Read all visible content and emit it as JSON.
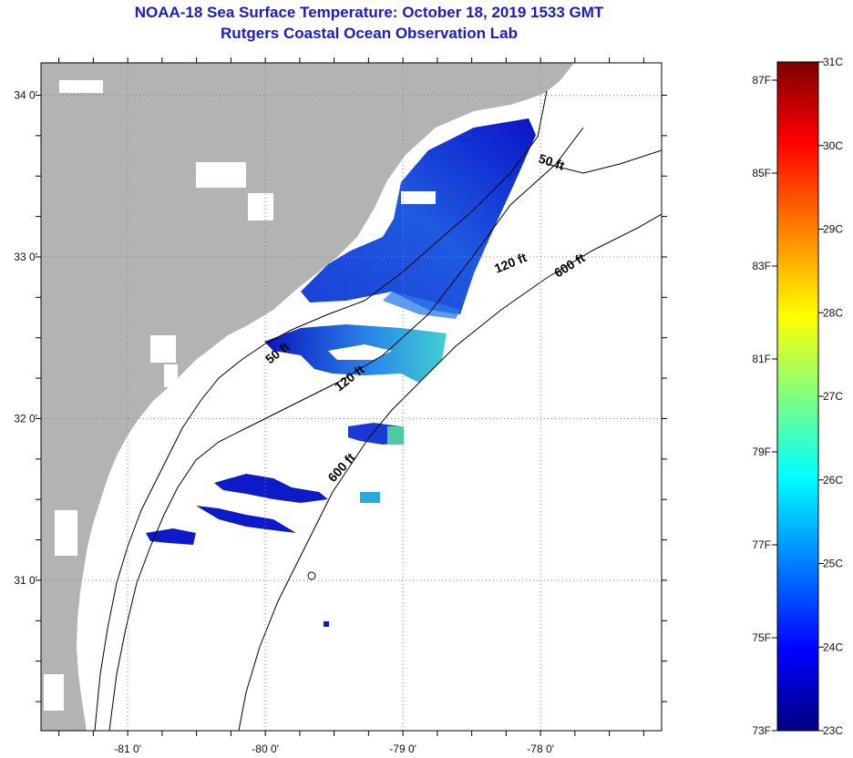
{
  "title": {
    "line1": "NOAA-18 Sea Surface Temperature:  October 18, 2019 1533 GMT",
    "line2": "Rutgers Coastal Ocean Observation Lab"
  },
  "map": {
    "latitude_ticks": [
      {
        "value": 34,
        "label": "34 0'"
      },
      {
        "value": 33,
        "label": "33 0'"
      },
      {
        "value": 32,
        "label": "32 0'"
      },
      {
        "value": 31,
        "label": "31 0'"
      }
    ],
    "longitude_ticks": [
      {
        "value": -81,
        "label": "-81 0'"
      },
      {
        "value": -80,
        "label": "-80 0'"
      },
      {
        "value": -79,
        "label": "-79 0'"
      },
      {
        "value": -78,
        "label": "-78 0'"
      }
    ],
    "contour_labels": [
      {
        "depth": "50 ft",
        "label": "50 ft"
      },
      {
        "depth": "120 ft",
        "label": "120 ft"
      },
      {
        "depth": "600 ft",
        "label": "600 ft"
      },
      {
        "depth": "50 ft",
        "label": "50 ft"
      },
      {
        "depth": "120 ft",
        "label": "120 ft"
      },
      {
        "depth": "600 ft",
        "label": "600 ft"
      }
    ],
    "colors": {
      "land": "#b3b3b3",
      "water_nodata": "#ffffff",
      "cold": "#0a14c8",
      "mid": "#1e6ee6",
      "warm": "#3cd2d2"
    }
  },
  "colorbar": {
    "celsius": [
      "31C",
      "30C",
      "29C",
      "28C",
      "27C",
      "26C",
      "25C",
      "24C",
      "23C"
    ],
    "fahrenheit": [
      "87F",
      "85F",
      "83F",
      "81F",
      "79F",
      "77F",
      "75F",
      "73F"
    ],
    "gradient_colors": [
      "#7f0000",
      "#ff0000",
      "#ff8000",
      "#ffff00",
      "#80ff80",
      "#00ffff",
      "#0080ff",
      "#0000ff",
      "#00007f"
    ]
  }
}
